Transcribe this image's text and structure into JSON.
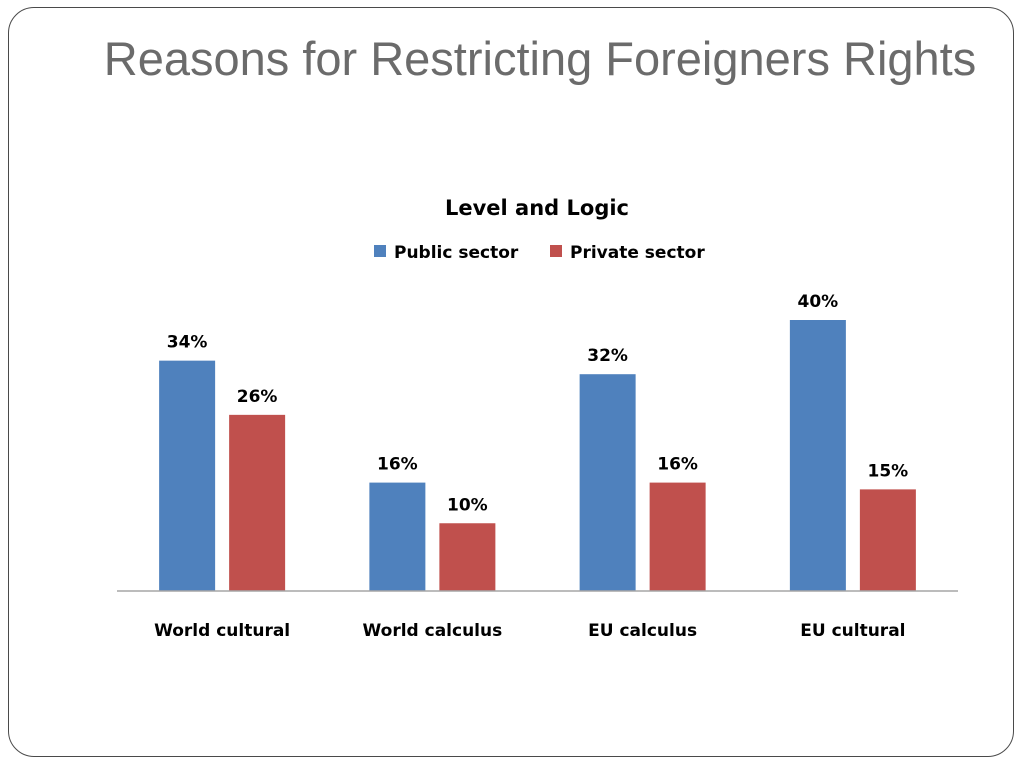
{
  "slide": {
    "title": "Reasons for Restricting Foreigners Rights"
  },
  "chart_data": {
    "type": "bar",
    "title": "Level and Logic",
    "categories": [
      "World cultural",
      "World calculus",
      "EU calculus",
      "EU cultural"
    ],
    "series": [
      {
        "name": "Public sector",
        "color": "#4F81BD",
        "values": [
          34,
          16,
          32,
          40
        ],
        "labels": [
          "34%",
          "16%",
          "32%",
          "40%"
        ]
      },
      {
        "name": "Private sector",
        "color": "#C0504D",
        "values": [
          26,
          10,
          16,
          15
        ],
        "labels": [
          "26%",
          "10%",
          "16%",
          "15%"
        ]
      }
    ],
    "ylim": [
      0,
      40
    ],
    "grid": false,
    "legend": "top"
  }
}
